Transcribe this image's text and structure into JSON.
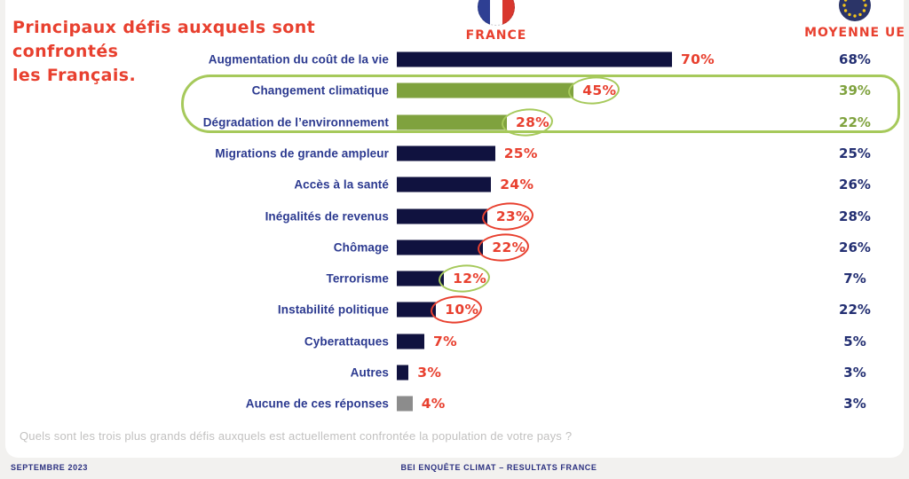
{
  "title": {
    "line1": "Principaux défis auxquels sont confrontés",
    "line2": "les Français."
  },
  "header": {
    "france_label": "FRANCE",
    "eu_label": "MOYENNE UE",
    "france_flag_icon": "france-flag-icon",
    "eu_flag_icon": "eu-flag-icon"
  },
  "chart_data": {
    "type": "bar",
    "orientation": "horizontal",
    "unit": "%",
    "categories": [
      "Augmentation du coût de la vie",
      "Changement climatique",
      "Dégradation de l’environnement",
      "Migrations de grande ampleur",
      "Accès à la santé",
      "Inégalités de revenus",
      "Chômage",
      "Terrorisme",
      "Instabilité politique",
      "Cyberattaques",
      "Autres",
      "Aucune de ces réponses"
    ],
    "series": [
      {
        "name": "France",
        "values": [
          70,
          45,
          28,
          25,
          24,
          23,
          22,
          12,
          10,
          7,
          3,
          4
        ]
      },
      {
        "name": "Moyenne UE",
        "values": [
          68,
          39,
          22,
          25,
          26,
          28,
          26,
          7,
          22,
          5,
          3,
          3
        ]
      }
    ],
    "bar_colors": [
      "navy",
      "green",
      "green",
      "navy",
      "navy",
      "navy",
      "navy",
      "navy",
      "navy",
      "navy",
      "navy",
      "gray"
    ],
    "circle_annotations": [
      null,
      "green",
      "green",
      null,
      null,
      "red",
      "red",
      "green",
      "red",
      null,
      null,
      null
    ],
    "highlight_box": {
      "rows": [
        1,
        2
      ],
      "color": "light_green"
    },
    "xlim": [
      0,
      100
    ],
    "grid": false,
    "legend_position": "top"
  },
  "question": "Quels sont les trois plus grands défis auxquels est actuellement confrontée la population de votre pays ?",
  "footer": {
    "date": "SEPTEMBRE 2023",
    "source": "BEI ENQUÊTE CLIMAT – RESULTATS FRANCE"
  },
  "colors": {
    "red": "#e8402f",
    "navy": "#10123f",
    "green": "#7fa23e",
    "gray": "#8c8c8c",
    "label_navy": "#2c3a90",
    "ue_navy": "#232f72",
    "annotation_green": "#a6c95b",
    "footer_navy": "#2b3080",
    "question_gray": "#c2c1c0",
    "page_bg": "#f2f1ef",
    "card_bg": "#ffffff"
  }
}
